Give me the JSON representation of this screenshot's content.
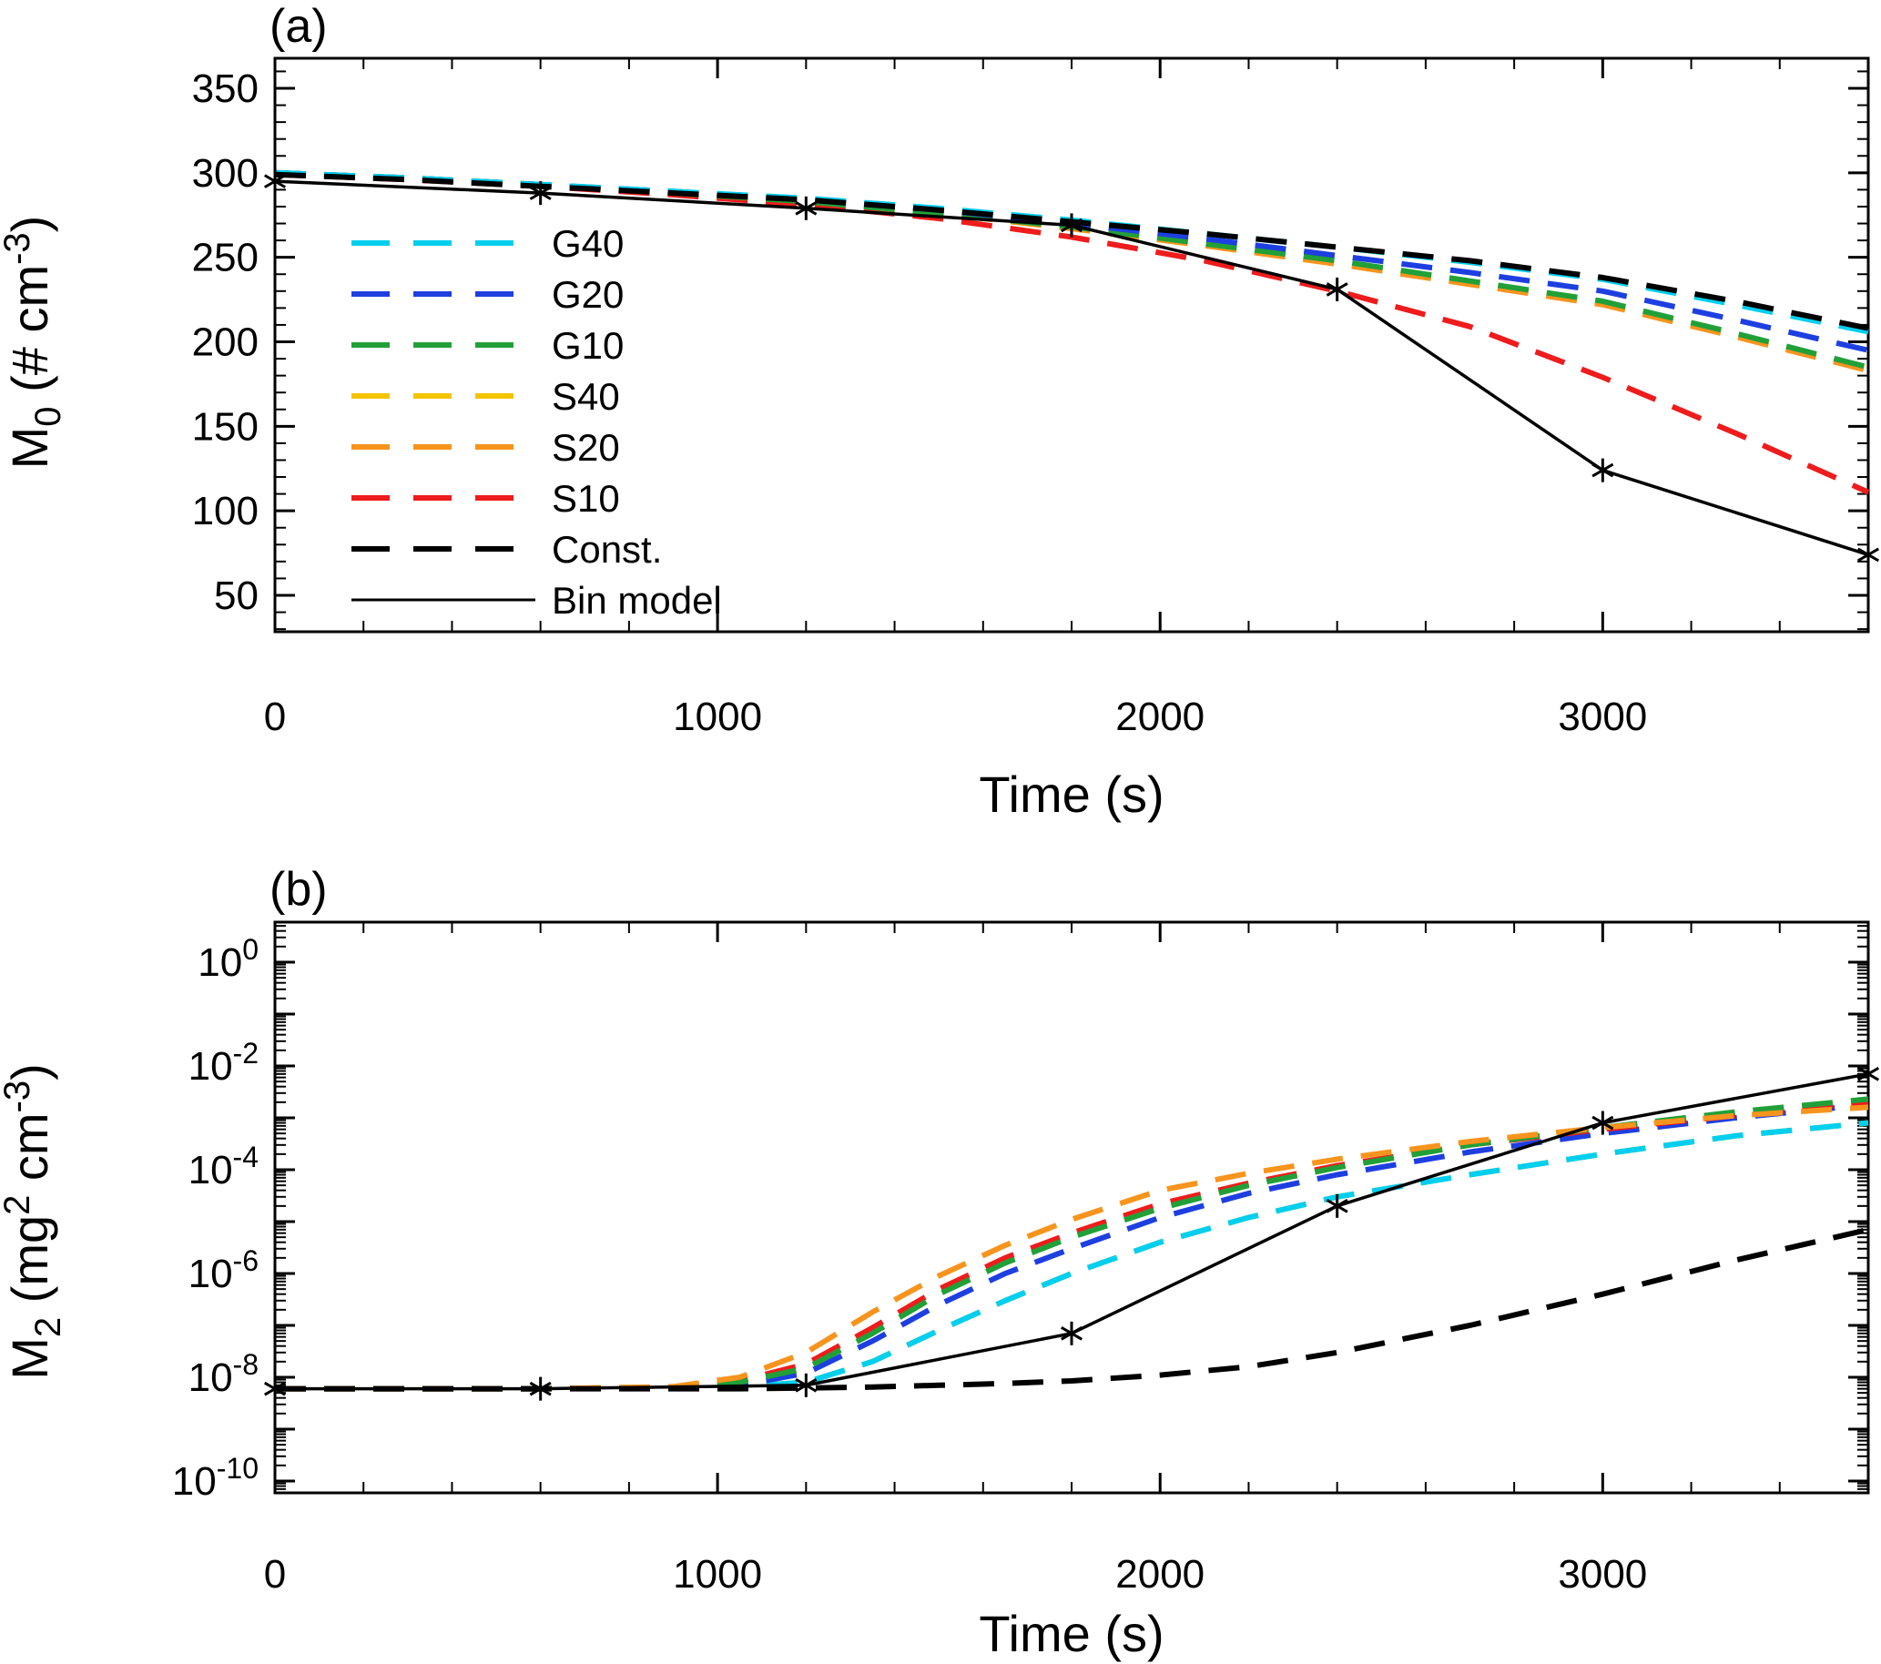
{
  "figure": {
    "background": "#ffffff",
    "axis_color": "#000000"
  },
  "chart_data": [
    {
      "id": "a",
      "type": "line",
      "panel_label": "(a)",
      "xlabel": "Time (s)",
      "ylabel_parts": [
        {
          "t": "M"
        },
        {
          "t": "0",
          "s": "sub"
        },
        {
          "t": " (# cm"
        },
        {
          "t": "-3",
          "s": "sup"
        },
        {
          "t": ")"
        }
      ],
      "xlim": [
        0,
        3600
      ],
      "xticks": [
        0,
        1000,
        2000,
        3000
      ],
      "xtick_labels": [
        "0",
        "1000",
        "2000",
        "3000"
      ],
      "x_minor_step": 200,
      "yscale": "linear",
      "ylim": [
        50,
        350
      ],
      "yticks": [
        350,
        300,
        250,
        200,
        150,
        100,
        50
      ],
      "ytick_labels": [
        "350",
        "300",
        "250",
        "200",
        "150",
        "100",
        "50"
      ],
      "y_minor_step": 10,
      "grid": false,
      "legend": {
        "position": "upper-left-inside",
        "entries": [
          "G40",
          "G20",
          "G10",
          "S40",
          "S20",
          "S10",
          "Const.",
          "Bin model"
        ]
      },
      "x": [
        0,
        300,
        600,
        900,
        1200,
        1500,
        1800,
        2100,
        2400,
        2700,
        3000,
        3300,
        3600
      ],
      "series": [
        {
          "name": "G40",
          "color": "#00CFEF",
          "style": "dashed",
          "values": [
            300,
            297,
            293,
            289,
            285,
            279,
            272,
            264,
            256,
            247,
            237,
            222,
            206
          ]
        },
        {
          "name": "G20",
          "color": "#1E3FE0",
          "style": "dashed",
          "values": [
            300,
            297,
            293,
            289,
            284,
            278,
            270,
            261,
            251,
            241,
            230,
            213,
            195
          ]
        },
        {
          "name": "G10",
          "color": "#21A038",
          "style": "dashed",
          "values": [
            300,
            297,
            293,
            288,
            283,
            276,
            268,
            258,
            248,
            236,
            224,
            205,
            185
          ]
        },
        {
          "name": "S40",
          "color": "#F5C400",
          "style": "dashed",
          "values": [
            300,
            297,
            293,
            288,
            283,
            276,
            267,
            257,
            246,
            235,
            223,
            204,
            184
          ]
        },
        {
          "name": "S20",
          "color": "#F7941E",
          "style": "dashed",
          "values": [
            300,
            297,
            293,
            288,
            283,
            276,
            267,
            257,
            246,
            234,
            222,
            203,
            183
          ]
        },
        {
          "name": "S10",
          "color": "#EE1C1C",
          "style": "dashed",
          "values": [
            299,
            296,
            292,
            287,
            281,
            273,
            262,
            248,
            230,
            209,
            179,
            146,
            111
          ]
        },
        {
          "name": "Const.",
          "color": "#000000",
          "style": "dashed",
          "values": [
            299,
            296,
            292,
            288,
            284,
            278,
            271,
            264,
            256,
            248,
            238,
            224,
            208
          ]
        },
        {
          "name": "Bin model",
          "color": "#000000",
          "style": "solid",
          "marker": "asterisk",
          "x": [
            0,
            600,
            1200,
            1800,
            2400,
            3000,
            3600
          ],
          "values": [
            295,
            288,
            279,
            269,
            231,
            124,
            74
          ]
        }
      ],
      "draw_order": [
        "S40",
        "S20",
        "S10",
        "G10",
        "G20",
        "G40",
        "Const.",
        "Bin model"
      ]
    },
    {
      "id": "b",
      "type": "line",
      "panel_label": "(b)",
      "xlabel": "Time (s)",
      "ylabel_parts": [
        {
          "t": "M"
        },
        {
          "t": "2",
          "s": "sub"
        },
        {
          "t": " (mg"
        },
        {
          "t": "2",
          "s": "sup"
        },
        {
          "t": " cm"
        },
        {
          "t": "-3",
          "s": "sup"
        },
        {
          "t": ")"
        }
      ],
      "xlim": [
        0,
        3600
      ],
      "xticks": [
        0,
        1000,
        2000,
        3000
      ],
      "xtick_labels": [
        "0",
        "1000",
        "2000",
        "3000"
      ],
      "x_minor_step": 200,
      "yscale": "log",
      "ylim": [
        1e-10,
        1
      ],
      "ytick_exponents": [
        0,
        -2,
        -4,
        -6,
        -8,
        -10
      ],
      "ytick_exponent_labels": [
        "0",
        "-2",
        "-4",
        "-6",
        "-8",
        "-10"
      ],
      "grid": false,
      "x": [
        0,
        300,
        600,
        900,
        1050,
        1200,
        1350,
        1500,
        1650,
        1800,
        2000,
        2200,
        2400,
        2700,
        3000,
        3300,
        3600
      ],
      "series": [
        {
          "name": "G40",
          "color": "#00CFEF",
          "style": "dashed",
          "values": [
            6e-09,
            6e-09,
            6e-09,
            6.2e-09,
            6.6e-09,
            8e-09,
            2e-08,
            8e-08,
            3e-07,
            1e-06,
            4e-06,
            1.2e-05,
            3e-05,
            8e-05,
            0.0002,
            0.00045,
            0.0008
          ]
        },
        {
          "name": "G20",
          "color": "#1E3FE0",
          "style": "dashed",
          "values": [
            6e-09,
            6e-09,
            6e-09,
            6.3e-09,
            7e-09,
            1.2e-08,
            5e-08,
            2.5e-07,
            1e-06,
            3e-06,
            1.2e-05,
            3.5e-05,
            8e-05,
            0.00022,
            0.0005,
            0.001,
            0.0018
          ]
        },
        {
          "name": "G10",
          "color": "#21A038",
          "style": "dashed",
          "values": [
            6e-09,
            6e-09,
            6e-09,
            6.4e-09,
            8e-09,
            1.5e-08,
            7e-08,
            4e-07,
            1.6e-06,
            5e-06,
            1.8e-05,
            5e-05,
            0.00011,
            0.0003,
            0.00065,
            0.0013,
            0.0023
          ]
        },
        {
          "name": "S40",
          "color": "#F5C400",
          "style": "dashed",
          "values": [
            6e-09,
            6e-09,
            6e-09,
            6.2e-09,
            6.6e-09,
            8e-09,
            2e-08,
            8e-08,
            3e-07,
            1e-06,
            4e-06,
            1.2e-05,
            3e-05,
            8e-05,
            0.0002,
            0.00045,
            0.0008
          ]
        },
        {
          "name": "S20",
          "color": "#F7941E",
          "style": "dashed",
          "values": [
            6e-09,
            6e-09,
            6e-09,
            6.6e-09,
            1e-08,
            3e-08,
            1.8e-07,
            9e-07,
            3.5e-06,
            1.1e-05,
            4e-05,
            8.5e-05,
            0.00016,
            0.00035,
            0.00065,
            0.0011,
            0.0016
          ]
        },
        {
          "name": "S10",
          "color": "#EE1C1C",
          "style": "dashed",
          "values": [
            6e-09,
            6e-09,
            6e-09,
            6.4e-09,
            8.5e-09,
            1.8e-08,
            9e-08,
            5e-07,
            2e-06,
            6e-06,
            2.2e-05,
            5.5e-05,
            0.00012,
            0.0003,
            0.0006,
            0.0011,
            0.002
          ]
        },
        {
          "name": "Const.",
          "color": "#000000",
          "style": "dashed",
          "values": [
            6e-09,
            6e-09,
            6e-09,
            6e-09,
            6e-09,
            6.2e-09,
            6.5e-09,
            7e-09,
            7.6e-09,
            8.5e-09,
            1.1e-08,
            1.6e-08,
            3e-08,
            1e-07,
            4e-07,
            1.8e-06,
            7e-06
          ]
        },
        {
          "name": "Bin model",
          "color": "#000000",
          "style": "solid",
          "marker": "asterisk",
          "x": [
            0,
            600,
            1200,
            1800,
            2400,
            3000,
            3600
          ],
          "values": [
            6e-09,
            6e-09,
            7e-09,
            7e-08,
            2e-05,
            0.0008,
            0.007
          ]
        }
      ],
      "draw_order": [
        "S40",
        "G40",
        "G20",
        "S10",
        "G10",
        "S20",
        "Const.",
        "Bin model"
      ]
    }
  ]
}
